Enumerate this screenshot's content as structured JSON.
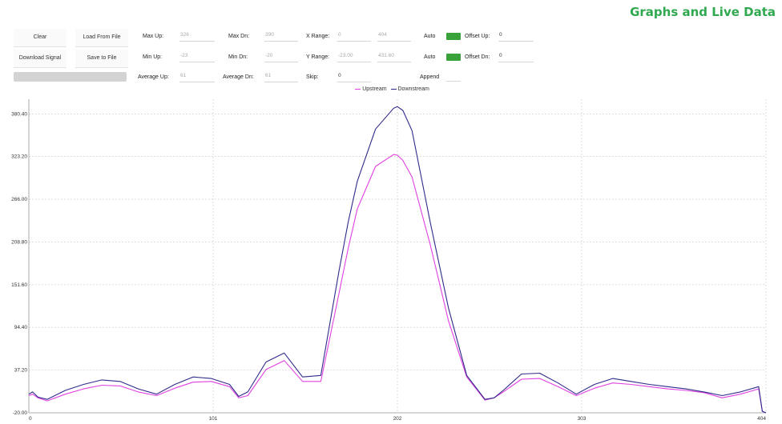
{
  "header": {
    "title": "Graphs and Live Data"
  },
  "buttons": {
    "clear": "Clear",
    "load_from_file": "Load From File",
    "download_signal": "Download Signal",
    "save_to_file": "Save to File"
  },
  "progress": {
    "value": 0
  },
  "stats": {
    "max_up_label": "Max Up:",
    "max_up_value": "326",
    "max_dn_label": "Max Dn:",
    "max_dn_value": "390",
    "min_up_label": "Min Up:",
    "min_up_value": "-23",
    "min_dn_label": "Min Dn:",
    "min_dn_value": "-20",
    "avg_up_label": "Average Up:",
    "avg_up_value": "61",
    "avg_dn_label": "Average Dn:",
    "avg_dn_value": "61"
  },
  "range": {
    "x_label": "X Range:",
    "x_min": "0",
    "x_max": "404",
    "y_label": "Y Range:",
    "y_min": "-23.00",
    "y_max": "431.60",
    "skip_label": "Skip:",
    "skip_value": "0"
  },
  "options": {
    "auto_x_label": "Auto",
    "auto_x_on": true,
    "auto_y_label": "Auto",
    "auto_y_on": true,
    "append_label": "Append",
    "offset_up_label": "Offset Up:",
    "offset_up_value": "0",
    "offset_dn_label": "Offset Dn:",
    "offset_dn_value": "0"
  },
  "colors": {
    "upstream": "#e040e0",
    "downstream": "#2f2a8a",
    "accent": "#2fa84f",
    "toggle": "#3aa23a"
  },
  "chart_data": {
    "type": "line",
    "xlim": [
      0,
      404
    ],
    "ylim": [
      -20,
      400
    ],
    "x_ticks": [
      "0",
      "101",
      "202",
      "303",
      "404"
    ],
    "y_ticks": [
      "-20.00",
      "37.20",
      "94.40",
      "151.60",
      "208.80",
      "266.00",
      "323.20",
      "380.40"
    ],
    "grid": true,
    "legend": "top-center",
    "series": [
      {
        "name": "Upstream",
        "x": [
          0,
          2,
          5,
          10,
          20,
          30,
          40,
          50,
          60,
          70,
          80,
          90,
          100,
          110,
          115,
          120,
          130,
          140,
          150,
          160,
          170,
          175,
          180,
          190,
          200,
          202,
          205,
          210,
          220,
          230,
          240,
          250,
          255,
          260,
          270,
          280,
          290,
          300,
          310,
          320,
          330,
          340,
          350,
          360,
          370,
          380,
          390,
          400,
          402,
          404
        ],
        "values": [
          3,
          5,
          0,
          -4,
          5,
          12,
          17,
          16,
          8,
          3,
          13,
          21,
          22,
          15,
          0,
          3,
          38,
          50,
          22,
          22,
          140,
          200,
          253,
          310,
          326,
          325,
          318,
          296,
          205,
          103,
          28,
          -3,
          0,
          8,
          25,
          26,
          15,
          3,
          13,
          20,
          18,
          15,
          12,
          10,
          7,
          0,
          5,
          12,
          -18,
          -20
        ]
      },
      {
        "name": "Downstream",
        "x": [
          0,
          2,
          5,
          10,
          20,
          30,
          40,
          50,
          60,
          70,
          80,
          90,
          100,
          110,
          115,
          120,
          130,
          140,
          150,
          160,
          170,
          175,
          180,
          190,
          200,
          202,
          205,
          210,
          220,
          230,
          240,
          250,
          255,
          260,
          270,
          280,
          290,
          300,
          310,
          320,
          330,
          340,
          350,
          360,
          370,
          380,
          390,
          400,
          402,
          404
        ],
        "values": [
          5,
          8,
          1,
          -2,
          10,
          18,
          24,
          22,
          12,
          5,
          18,
          28,
          26,
          18,
          2,
          8,
          48,
          60,
          28,
          30,
          170,
          235,
          290,
          360,
          388,
          390,
          385,
          358,
          235,
          120,
          30,
          -2,
          0,
          10,
          32,
          33,
          20,
          5,
          18,
          26,
          22,
          18,
          15,
          12,
          8,
          3,
          8,
          15,
          -18,
          -20
        ]
      }
    ]
  }
}
